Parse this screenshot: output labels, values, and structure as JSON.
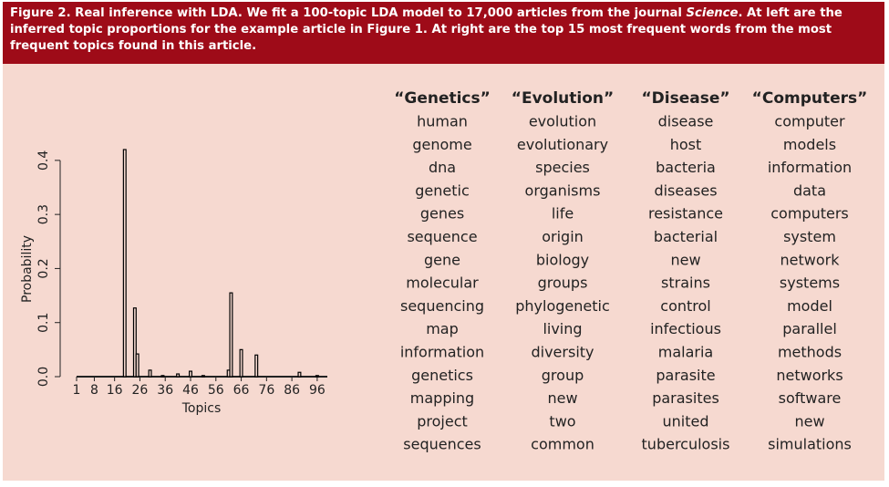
{
  "caption": {
    "before": "Figure 2. Real inference with LDA. We fit a 100-topic LDA model to 17,000 articles from the journal ",
    "emphasis": "Science",
    "after": ". At left are the inferred topic proportions for the example article in Figure 1. At right are the top 15 most frequent words from the most frequent topics found in this article."
  },
  "chart_data": {
    "type": "bar",
    "xlabel": "Topics",
    "ylabel": "Probability",
    "x": [
      20,
      24,
      25,
      30,
      35,
      41,
      46,
      51,
      61,
      62,
      66,
      72,
      89,
      96
    ],
    "values": [
      0.42,
      0.127,
      0.042,
      0.012,
      0.002,
      0.005,
      0.01,
      0.002,
      0.012,
      0.155,
      0.05,
      0.04,
      0.008,
      0.002
    ],
    "color": "#000000",
    "xlim": [
      1,
      100
    ],
    "xticks": [
      1,
      8,
      16,
      26,
      36,
      46,
      56,
      66,
      76,
      86,
      96
    ],
    "ylim": [
      0,
      0.42
    ],
    "yticks": [
      {
        "value": 0,
        "label": "0.0"
      },
      0.1,
      0.2,
      0.3,
      0.4
    ]
  },
  "table": {
    "columns": [
      {
        "header": "“Genetics”",
        "words": [
          "human",
          "genome",
          "dna",
          "genetic",
          "genes",
          "sequence",
          "gene",
          "molecular",
          "sequencing",
          "map",
          "information",
          "genetics",
          "mapping",
          "project",
          "sequences"
        ]
      },
      {
        "header": "“Evolution”",
        "words": [
          "evolution",
          "evolutionary",
          "species",
          "organisms",
          "life",
          "origin",
          "biology",
          "groups",
          "phylogenetic",
          "living",
          "diversity",
          "group",
          "new",
          "two",
          "common"
        ]
      },
      {
        "header": "“Disease”",
        "words": [
          "disease",
          "host",
          "bacteria",
          "diseases",
          "resistance",
          "bacterial",
          "new",
          "strains",
          "control",
          "infectious",
          "malaria",
          "parasite",
          "parasites",
          "united",
          "tuberculosis"
        ]
      },
      {
        "header": "“Computers”",
        "words": [
          "computer",
          "models",
          "information",
          "data",
          "computers",
          "system",
          "network",
          "systems",
          "model",
          "parallel",
          "methods",
          "networks",
          "software",
          "new",
          "simulations"
        ]
      }
    ]
  }
}
